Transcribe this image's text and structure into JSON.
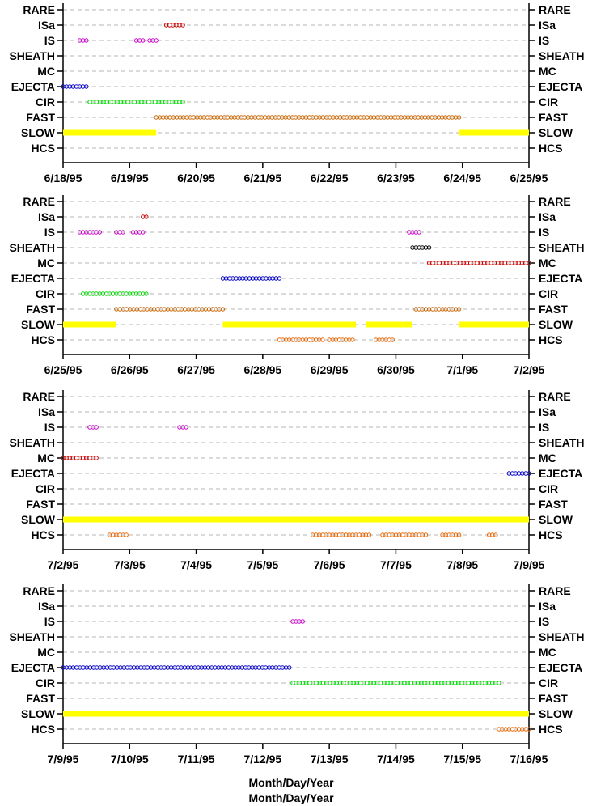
{
  "chart_data": {
    "type": "scatter",
    "x_unit": "days",
    "xlabel": [
      "Month/Day/Year",
      "Month/Day/Year"
    ],
    "categories": [
      "RARE",
      "ISa",
      "IS",
      "SHEATH",
      "MC",
      "EJECTA",
      "CIR",
      "FAST",
      "SLOW",
      "HCS"
    ],
    "colors": {
      "RARE": "#000000",
      "ISa": "#cc0000",
      "IS": "#cc00cc",
      "SHEATH": "#000000",
      "MC": "#cc0000",
      "EJECTA": "#0000cc",
      "CIR": "#00dd00",
      "FAST": "#cc6600",
      "SLOW": "#ffff00",
      "HCS": "#ee6600"
    },
    "grid": "dashed horizontal",
    "panels": [
      {
        "date_labels": [
          "6/18/95",
          "6/19/95",
          "6/20/95",
          "6/21/95",
          "6/22/95",
          "6/23/95",
          "6/24/95",
          "6/25/95"
        ],
        "xlim": [
          0,
          7
        ],
        "series": [
          {
            "category": "ISa",
            "intervals": [
              [
                1.55,
                1.8
              ]
            ]
          },
          {
            "category": "IS",
            "intervals": [
              [
                0.25,
                0.35
              ],
              [
                1.1,
                1.2
              ],
              [
                1.3,
                1.4
              ]
            ]
          },
          {
            "category": "EJECTA",
            "intervals": [
              [
                0.0,
                0.35
              ]
            ]
          },
          {
            "category": "CIR",
            "intervals": [
              [
                0.4,
                1.8
              ]
            ]
          },
          {
            "category": "FAST",
            "intervals": [
              [
                1.4,
                5.95
              ]
            ]
          },
          {
            "category": "SLOW",
            "intervals": [
              [
                0.0,
                1.4
              ],
              [
                5.95,
                7.0
              ]
            ]
          }
        ]
      },
      {
        "date_labels": [
          "6/25/95",
          "6/26/95",
          "6/27/95",
          "6/28/95",
          "6/29/95",
          "6/30/95",
          "7/1/95",
          "7/2/95"
        ],
        "xlim": [
          0,
          7
        ],
        "series": [
          {
            "category": "ISa",
            "intervals": [
              [
                1.2,
                1.25
              ]
            ]
          },
          {
            "category": "IS",
            "intervals": [
              [
                0.25,
                0.55
              ],
              [
                0.8,
                0.9
              ],
              [
                1.05,
                1.2
              ],
              [
                5.2,
                5.35
              ]
            ]
          },
          {
            "category": "SHEATH",
            "intervals": [
              [
                5.25,
                5.5
              ]
            ]
          },
          {
            "category": "MC",
            "intervals": [
              [
                5.5,
                7.0
              ]
            ]
          },
          {
            "category": "EJECTA",
            "intervals": [
              [
                2.4,
                3.25
              ]
            ]
          },
          {
            "category": "CIR",
            "intervals": [
              [
                0.3,
                1.25
              ]
            ]
          },
          {
            "category": "FAST",
            "intervals": [
              [
                0.8,
                2.4
              ],
              [
                5.3,
                5.95
              ]
            ]
          },
          {
            "category": "SLOW",
            "intervals": [
              [
                0.0,
                0.8
              ],
              [
                2.4,
                4.4
              ],
              [
                4.55,
                5.25
              ],
              [
                5.95,
                7.0
              ]
            ]
          },
          {
            "category": "HCS",
            "intervals": [
              [
                3.25,
                3.9
              ],
              [
                4.0,
                4.35
              ],
              [
                4.7,
                4.95
              ]
            ]
          }
        ]
      },
      {
        "date_labels": [
          "7/2/95",
          "7/3/95",
          "7/4/95",
          "7/5/95",
          "7/6/95",
          "7/7/95",
          "7/8/95",
          "7/9/95"
        ],
        "xlim": [
          0,
          7
        ],
        "series": [
          {
            "category": "IS",
            "intervals": [
              [
                0.4,
                0.5
              ],
              [
                1.75,
                1.85
              ]
            ]
          },
          {
            "category": "MC",
            "intervals": [
              [
                0.0,
                0.5
              ]
            ]
          },
          {
            "category": "EJECTA",
            "intervals": [
              [
                6.7,
                7.0
              ]
            ]
          },
          {
            "category": "SLOW",
            "intervals": [
              [
                0.0,
                7.0
              ]
            ]
          },
          {
            "category": "HCS",
            "intervals": [
              [
                0.7,
                0.95
              ],
              [
                3.75,
                4.6
              ],
              [
                4.8,
                5.45
              ],
              [
                5.7,
                5.95
              ],
              [
                6.4,
                6.5
              ]
            ]
          }
        ]
      },
      {
        "date_labels": [
          "7/9/95",
          "7/10/95",
          "7/11/95",
          "7/12/95",
          "7/13/95",
          "7/14/95",
          "7/15/95",
          "7/16/95"
        ],
        "xlim": [
          0,
          7
        ],
        "series": [
          {
            "category": "IS",
            "intervals": [
              [
                3.45,
                3.6
              ]
            ]
          },
          {
            "category": "EJECTA",
            "intervals": [
              [
                0.0,
                3.4
              ]
            ]
          },
          {
            "category": "CIR",
            "intervals": [
              [
                3.45,
                6.55
              ]
            ]
          },
          {
            "category": "SLOW",
            "intervals": [
              [
                0.0,
                7.0
              ]
            ]
          },
          {
            "category": "HCS",
            "intervals": [
              [
                6.55,
                7.0
              ]
            ]
          }
        ]
      }
    ]
  }
}
